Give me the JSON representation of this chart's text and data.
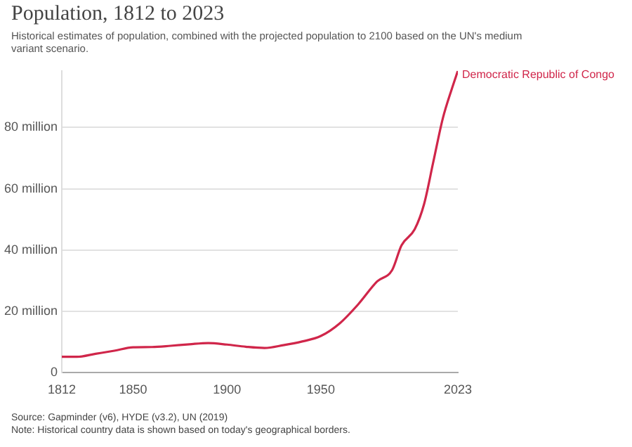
{
  "chart_data": {
    "type": "line",
    "title": "Population, 1812 to 2023",
    "subtitle": "Historical estimates of population, combined with the projected population to 2100 based on the UN's medium variant scenario.",
    "x": [
      1812,
      1820,
      1830,
      1840,
      1850,
      1860,
      1870,
      1880,
      1890,
      1900,
      1910,
      1920,
      1930,
      1940,
      1950,
      1960,
      1970,
      1980,
      1988,
      1993,
      2000,
      2005,
      2010,
      2015,
      2020,
      2023
    ],
    "series": [
      {
        "name": "Democratic Republic of Congo",
        "color": "#d0264a",
        "values": [
          5.2,
          5.2,
          6.2,
          7.2,
          8.3,
          8.4,
          8.8,
          9.3,
          9.7,
          9.2,
          8.5,
          8.1,
          9.0,
          10.2,
          12.0,
          16.1,
          22.4,
          29.8,
          33.5,
          41.6,
          46.8,
          55,
          69,
          83,
          93,
          98.5
        ]
      }
    ],
    "xlim": [
      1812,
      2023
    ],
    "xticks": [
      1812,
      1850,
      1900,
      1950,
      2023
    ],
    "yticks": [
      0,
      {
        "value": 20,
        "label": "20 million"
      },
      {
        "value": 40,
        "label": "40 million"
      },
      {
        "value": 60,
        "label": "60 million"
      },
      {
        "value": 80,
        "label": "80 million"
      }
    ],
    "ylim": [
      0,
      98.5
    ],
    "grid": "y",
    "legend": false,
    "marker": "none",
    "line_style": "solid",
    "annotations": [
      "Source: Gapminder (v6), HYDE (v3.2), UN (2019)",
      "Note: Historical country data is shown based on today's geographical borders."
    ]
  }
}
